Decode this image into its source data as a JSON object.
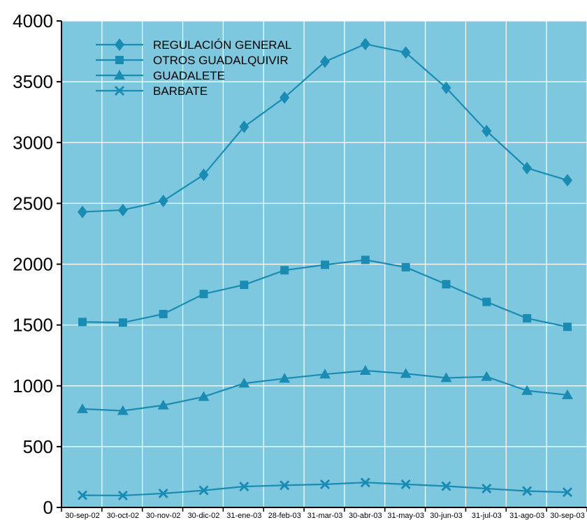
{
  "chart_data": {
    "type": "line",
    "categories": [
      "30-sep-02",
      "30-oct-02",
      "30-nov-02",
      "30-dic-02",
      "31-ene-03",
      "28-feb-03",
      "31-mar-03",
      "30-abr-03",
      "31-may-03",
      "30-jun-03",
      "31-jul-03",
      "31-ago-03",
      "30-sep-03"
    ],
    "ylim": [
      0,
      4000
    ],
    "yticks": [
      "0",
      "500",
      "1000",
      "1500",
      "2000",
      "2500",
      "3000",
      "3500",
      "4000"
    ],
    "grid": true,
    "legend_position": "top-left",
    "colors": {
      "plot_background": "#7EC8DF",
      "series_line": "#1A8BB3",
      "grid": "#FFFFFF",
      "axis": "#000000"
    },
    "series": [
      {
        "name": "REGULACIÓN GENERAL",
        "marker": "diamond",
        "values": [
          2430,
          2445,
          2520,
          2735,
          3130,
          3370,
          3665,
          3810,
          3740,
          3450,
          3095,
          2790,
          2690
        ]
      },
      {
        "name": "OTROS GUADALQUIVIR",
        "marker": "square",
        "values": [
          1525,
          1520,
          1590,
          1755,
          1830,
          1950,
          1995,
          2035,
          1975,
          1835,
          1690,
          1555,
          1485
        ]
      },
      {
        "name": "GUADALETE",
        "marker": "triangle",
        "values": [
          810,
          795,
          840,
          910,
          1020,
          1060,
          1095,
          1125,
          1100,
          1065,
          1075,
          960,
          925
        ]
      },
      {
        "name": "BARBATE",
        "marker": "x",
        "values": [
          100,
          98,
          115,
          140,
          172,
          182,
          190,
          205,
          190,
          175,
          155,
          135,
          125
        ]
      }
    ]
  }
}
